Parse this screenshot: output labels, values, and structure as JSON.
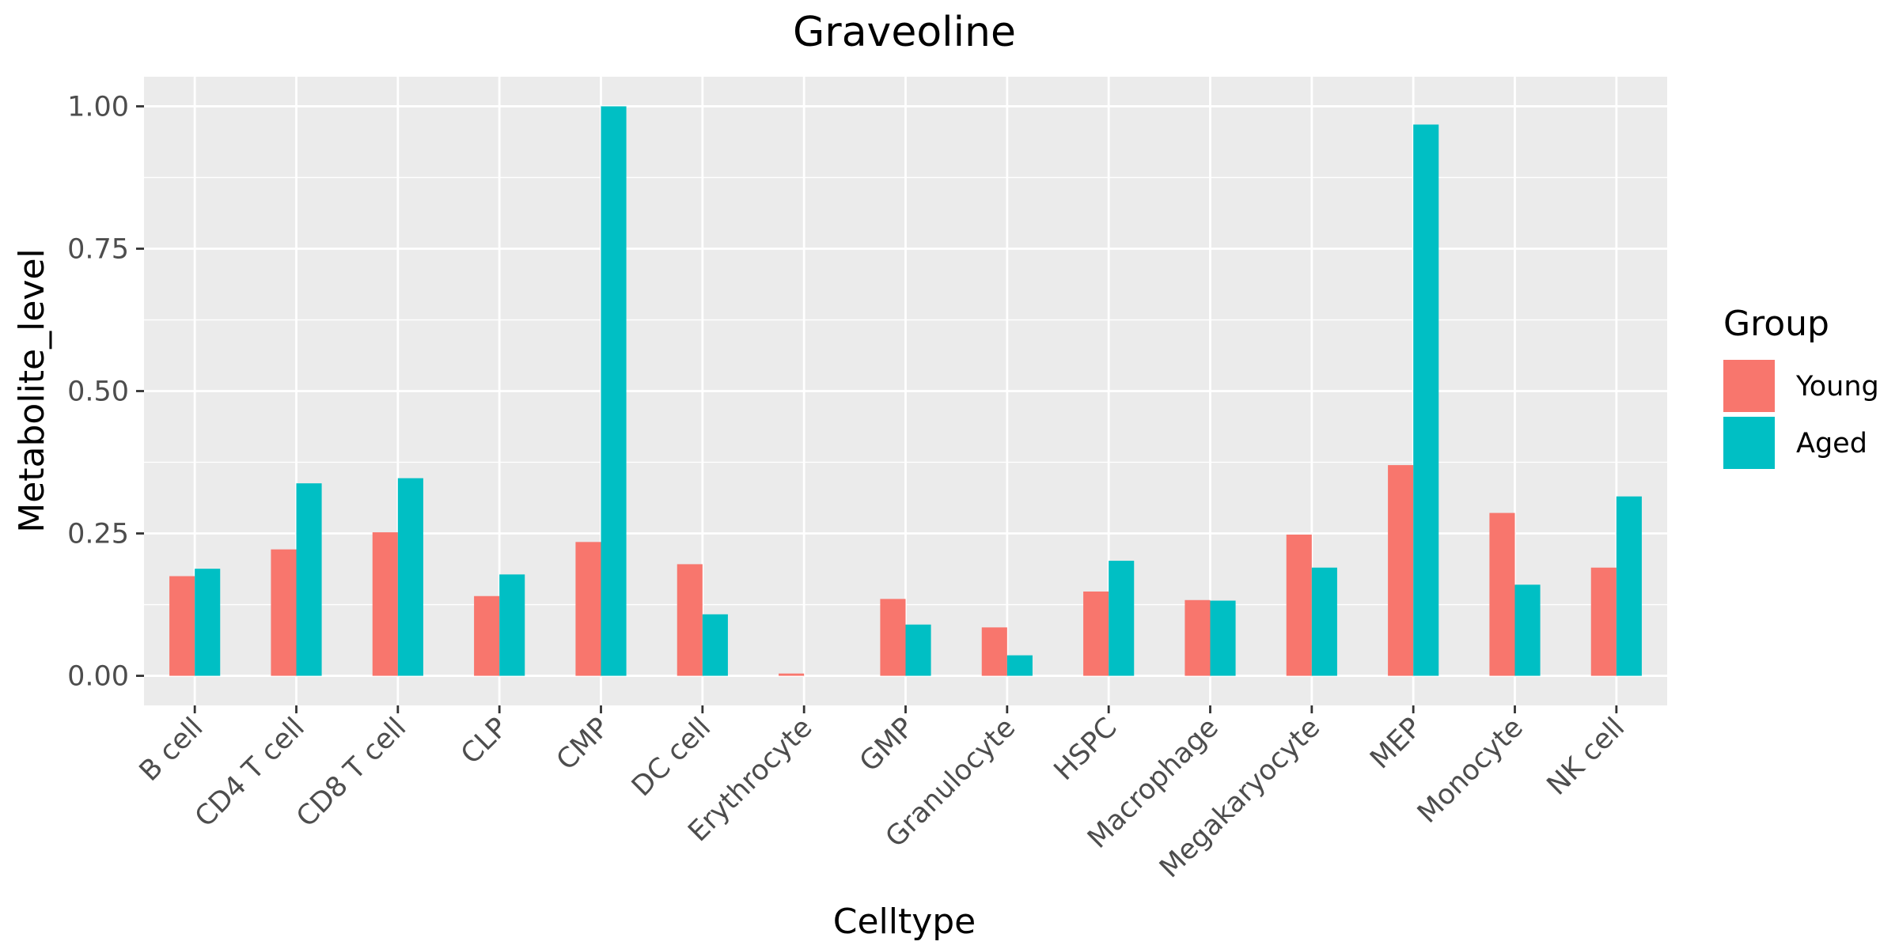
{
  "chart_data": {
    "type": "bar",
    "title": "Graveoline",
    "xlabel": "Celltype",
    "ylabel": "Metabolite_level",
    "categories": [
      "B cell",
      "CD4 T cell",
      "CD8 T cell",
      "CLP",
      "CMP",
      "DC cell",
      "Erythrocyte",
      "GMP",
      "Granulocyte",
      "HSPC",
      "Macrophage",
      "Megakaryocyte",
      "MEP",
      "Monocyte",
      "NK cell"
    ],
    "series": [
      {
        "name": "Young",
        "color": "#F8766D",
        "values": [
          0.175,
          0.222,
          0.252,
          0.14,
          0.235,
          0.196,
          0.004,
          0.135,
          0.085,
          0.148,
          0.133,
          0.248,
          0.37,
          0.286,
          0.19
        ]
      },
      {
        "name": "Aged",
        "color": "#00BFC4",
        "values": [
          0.188,
          0.338,
          0.347,
          0.178,
          1.0,
          0.108,
          0.0,
          0.09,
          0.036,
          0.202,
          0.132,
          0.19,
          0.968,
          0.16,
          0.315
        ]
      }
    ],
    "ylim": [
      -0.052,
      1.052
    ],
    "yticks": [
      0.0,
      0.25,
      0.5,
      0.75,
      1.0
    ],
    "ytick_labels": [
      "0.00",
      "0.25",
      "0.50",
      "0.75",
      "1.00"
    ],
    "grid": true,
    "legend": {
      "title": "Group",
      "position": "right"
    },
    "panel_color": "#EBEBEB",
    "grid_color": "#FFFFFF"
  }
}
